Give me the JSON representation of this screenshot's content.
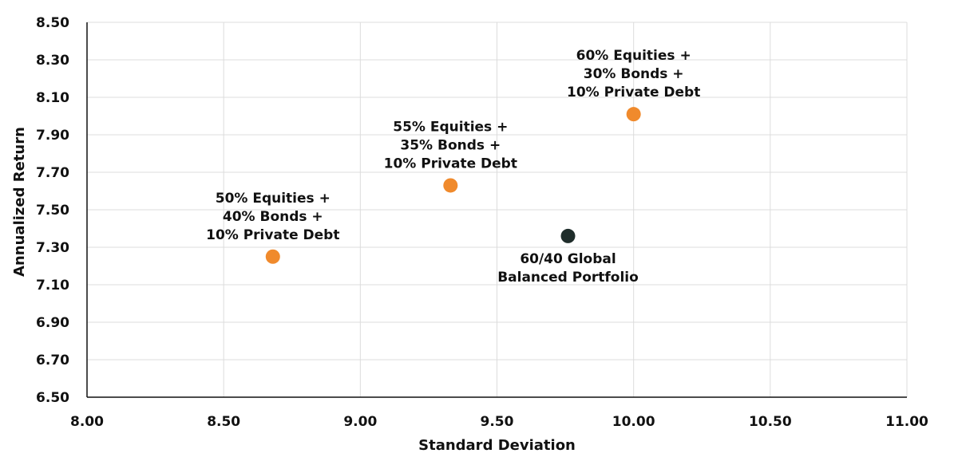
{
  "chart_data": {
    "type": "scatter",
    "xlabel": "Standard Deviation",
    "ylabel": "Annualized Return",
    "xlim": [
      8.0,
      11.0
    ],
    "ylim": [
      6.5,
      8.5
    ],
    "x_ticks": [
      "8.00",
      "8.50",
      "9.00",
      "9.50",
      "10.00",
      "10.50",
      "11.00"
    ],
    "y_ticks": [
      "6.50",
      "6.70",
      "6.90",
      "7.10",
      "7.30",
      "7.50",
      "7.70",
      "7.90",
      "8.10",
      "8.30",
      "8.50"
    ],
    "grid": true,
    "colors": {
      "orange": "#f08a2c",
      "dark": "#1f2d2b"
    },
    "points": [
      {
        "x": 8.68,
        "y": 7.25,
        "color": "#f08a2c",
        "label_position": "above",
        "label_lines": [
          "50% Equities +",
          "40% Bonds +",
          "10% Private Debt"
        ]
      },
      {
        "x": 9.33,
        "y": 7.63,
        "color": "#f08a2c",
        "label_position": "above",
        "label_lines": [
          "55% Equities +",
          "35% Bonds +",
          "10% Private Debt"
        ]
      },
      {
        "x": 10.0,
        "y": 8.01,
        "color": "#f08a2c",
        "label_position": "above",
        "label_lines": [
          "60% Equities +",
          "30% Bonds +",
          "10% Private Debt"
        ]
      },
      {
        "x": 9.76,
        "y": 7.36,
        "color": "#1f2d2b",
        "label_position": "below",
        "label_lines": [
          "60/40 Global",
          "Balanced Portfolio"
        ]
      }
    ]
  }
}
